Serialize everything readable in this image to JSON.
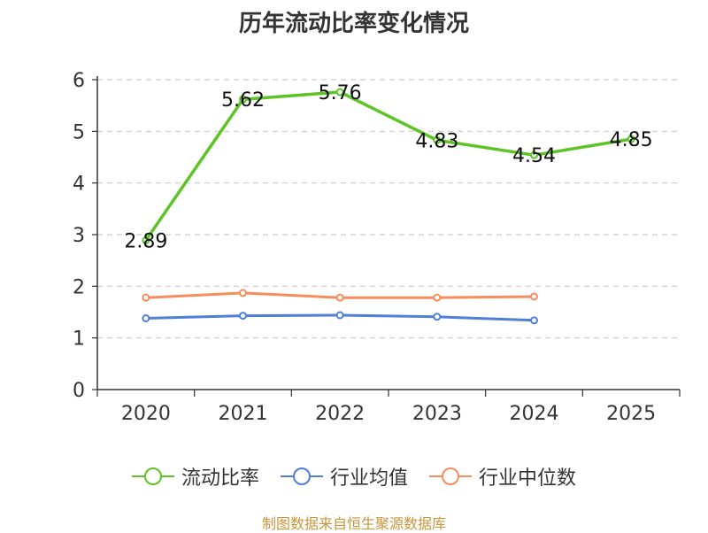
{
  "chart_data": {
    "type": "line",
    "title": "历年流动比率变化情况",
    "categories": [
      "2020",
      "2021",
      "2022",
      "2023",
      "2024",
      "2025"
    ],
    "ylim": [
      0,
      6
    ],
    "yticks": [
      0,
      1,
      2,
      3,
      4,
      5,
      6
    ],
    "grid": true,
    "legend_position": "bottom",
    "series": [
      {
        "name": "流动比率",
        "color": "#5cc425",
        "values": [
          2.89,
          5.62,
          5.76,
          4.83,
          4.54,
          4.85
        ],
        "labels": [
          "2.89",
          "5.62",
          "5.76",
          "4.83",
          "4.54",
          "4.85"
        ],
        "show_labels": true
      },
      {
        "name": "行业均值",
        "color": "#4f7fd8",
        "values": [
          1.38,
          1.43,
          1.44,
          1.41,
          1.34,
          null
        ],
        "show_labels": false
      },
      {
        "name": "行业中位数",
        "color": "#f78c5c",
        "values": [
          1.78,
          1.87,
          1.78,
          1.78,
          1.8,
          null
        ],
        "show_labels": false
      }
    ]
  },
  "footer": "制图数据来自恒生聚源数据库"
}
